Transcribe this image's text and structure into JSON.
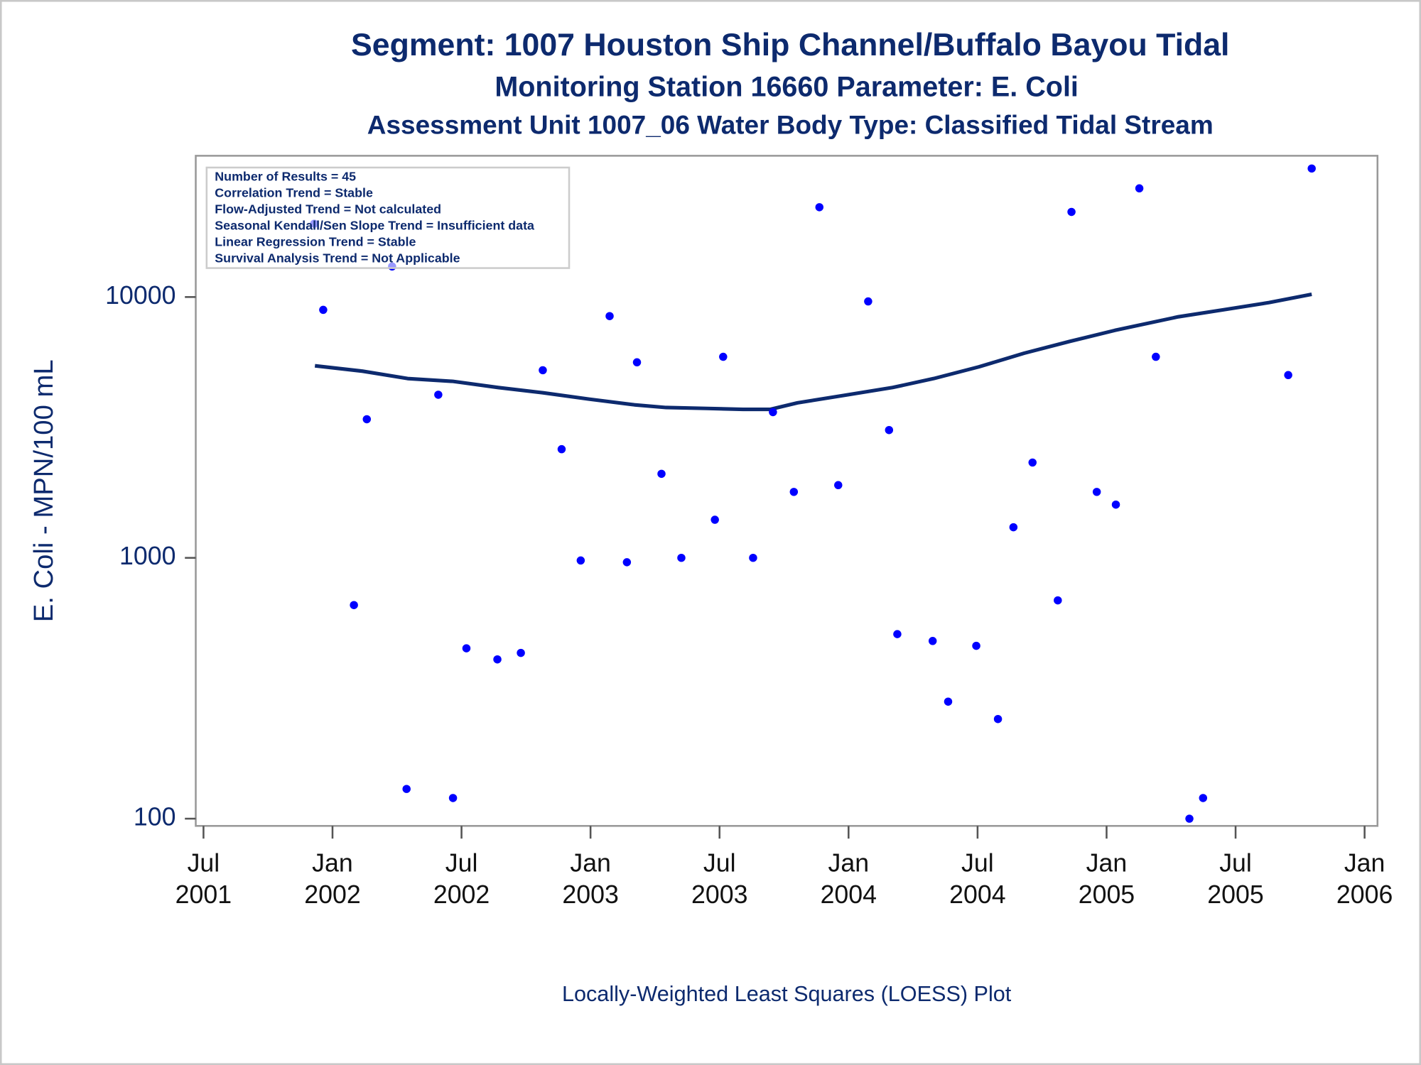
{
  "chart_data": {
    "type": "scatter",
    "title": "Segment: 1007  Houston Ship Channel/Buffalo Bayou Tidal",
    "subtitle": [
      "Monitoring Station 16660 Parameter: E. Coli",
      "Assessment Unit 1007_06   Water Body Type: Classified Tidal Stream"
    ],
    "ylabel": "E. Coli - MPN/100 mL",
    "footer": "Locally-Weighted Least Squares (LOESS) Plot",
    "annotations": [
      "Number of Results = 45",
      "Correlation Trend = Stable",
      "Flow-Adjusted Trend = Not calculated",
      "Seasonal Kendall/Sen Slope Trend = Insufficient data",
      "Linear Regression Trend = Stable",
      "Survival Analysis Trend = Not Applicable"
    ],
    "color": "#0000ff",
    "x": [
      2001.929,
      2001.964,
      2002.083,
      2002.133,
      2002.231,
      2002.287,
      2002.41,
      2002.467,
      2002.519,
      2002.639,
      2002.73,
      2002.815,
      2002.888,
      2002.962,
      2003.074,
      2003.141,
      2003.18,
      2003.275,
      2003.352,
      2003.482,
      2003.514,
      2003.63,
      2003.707,
      2003.788,
      2003.887,
      2003.96,
      2004.076,
      2004.157,
      2004.189,
      2004.326,
      2004.386,
      2004.495,
      2004.579,
      2004.639,
      2004.713,
      2004.811,
      2004.864,
      2004.962,
      2005.036,
      2005.127,
      2005.191,
      2005.321,
      2005.374,
      2005.704,
      2005.795
    ],
    "values": [
      19100,
      8930,
      659,
      3400,
      13100,
      130,
      4220,
      120,
      450,
      408,
      432,
      5240,
      2610,
      977,
      8450,
      962,
      5620,
      2100,
      1000,
      1400,
      5900,
      1000,
      3620,
      1790,
      22100,
      1900,
      9620,
      3090,
      510,
      480,
      281,
      460,
      241,
      1310,
      2320,
      687,
      21200,
      1790,
      1600,
      26100,
      5900,
      100,
      120,
      5020,
      31100
    ],
    "trend": {
      "type": "line",
      "color": "#0d2a6e",
      "x": [
        2001.932,
        2002.115,
        2002.291,
        2002.467,
        2002.642,
        2002.818,
        2002.994,
        2003.17,
        2003.293,
        2003.451,
        2003.591,
        2003.697,
        2003.802,
        2003.978,
        2004.171,
        2004.33,
        2004.505,
        2004.681,
        2004.857,
        2005.032,
        2005.278,
        2005.454,
        2005.63,
        2005.795
      ],
      "values": [
        5450,
        5200,
        4870,
        4750,
        4500,
        4290,
        4060,
        3860,
        3770,
        3740,
        3710,
        3710,
        3930,
        4190,
        4500,
        4870,
        5400,
        6090,
        6760,
        7450,
        8400,
        8940,
        9520,
        10240
      ]
    },
    "ylog": true,
    "ylim": [
      93.8,
      34800
    ],
    "yticks": [
      100,
      1000,
      10000
    ],
    "xlim": [
      2001.47,
      2006.05
    ],
    "xticks": [
      {
        "value": 2001.5,
        "label": [
          "Jul",
          "2001"
        ]
      },
      {
        "value": 2002.0,
        "label": [
          "Jan",
          "2002"
        ]
      },
      {
        "value": 2002.5,
        "label": [
          "Jul",
          "2002"
        ]
      },
      {
        "value": 2003.0,
        "label": [
          "Jan",
          "2003"
        ]
      },
      {
        "value": 2003.5,
        "label": [
          "Jul",
          "2003"
        ]
      },
      {
        "value": 2004.0,
        "label": [
          "Jan",
          "2004"
        ]
      },
      {
        "value": 2004.5,
        "label": [
          "Jul",
          "2004"
        ]
      },
      {
        "value": 2005.0,
        "label": [
          "Jan",
          "2005"
        ]
      },
      {
        "value": 2005.5,
        "label": [
          "Jul",
          "2005"
        ]
      },
      {
        "value": 2006.0,
        "label": [
          "Jan",
          "2006"
        ]
      }
    ]
  }
}
